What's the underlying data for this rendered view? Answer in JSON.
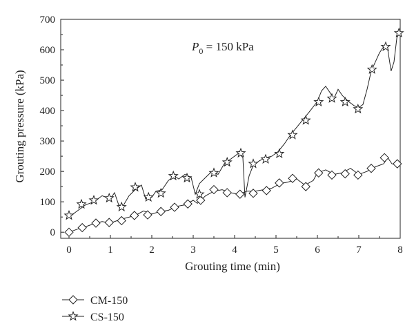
{
  "chart_data": {
    "type": "line",
    "xlabel": "Grouting time (min)",
    "ylabel": "Grouting pressure (kPa)",
    "annotation": {
      "symbol": "P",
      "subscript": "0",
      "text": " = 150 kPa"
    },
    "xlim": [
      -0.2,
      8.0
    ],
    "ylim": [
      -20,
      700
    ],
    "xticks": [
      0,
      1,
      2,
      3,
      4,
      5,
      6,
      7,
      8
    ],
    "yticks": [
      0,
      100,
      200,
      300,
      400,
      500,
      600,
      700
    ],
    "grid": false,
    "legend": "bottom-left",
    "series": [
      {
        "name": "CM-150",
        "marker": "diamond",
        "line": [
          [
            0,
            0
          ],
          [
            0.2,
            10
          ],
          [
            0.4,
            18
          ],
          [
            0.6,
            28
          ],
          [
            0.8,
            35
          ],
          [
            1.0,
            30
          ],
          [
            1.2,
            40
          ],
          [
            1.4,
            48
          ],
          [
            1.6,
            55
          ],
          [
            1.8,
            70
          ],
          [
            2.0,
            60
          ],
          [
            2.2,
            68
          ],
          [
            2.4,
            72
          ],
          [
            2.6,
            85
          ],
          [
            2.8,
            90
          ],
          [
            3.0,
            105
          ],
          [
            3.1,
            95
          ],
          [
            3.3,
            120
          ],
          [
            3.5,
            135
          ],
          [
            3.7,
            140
          ],
          [
            3.9,
            130
          ],
          [
            4.1,
            125
          ],
          [
            4.3,
            135
          ],
          [
            4.5,
            135
          ],
          [
            4.7,
            140
          ],
          [
            4.9,
            145
          ],
          [
            5.1,
            160
          ],
          [
            5.3,
            165
          ],
          [
            5.5,
            175
          ],
          [
            5.7,
            155
          ],
          [
            5.9,
            170
          ],
          [
            6.0,
            195
          ],
          [
            6.2,
            205
          ],
          [
            6.4,
            190
          ],
          [
            6.6,
            195
          ],
          [
            6.8,
            210
          ],
          [
            7.0,
            190
          ],
          [
            7.2,
            200
          ],
          [
            7.4,
            215
          ],
          [
            7.6,
            225
          ],
          [
            7.7,
            245
          ],
          [
            7.8,
            225
          ],
          [
            8.0,
            218
          ]
        ],
        "markers": [
          [
            0.0,
            0
          ],
          [
            0.32,
            15
          ],
          [
            0.65,
            30
          ],
          [
            0.97,
            32
          ],
          [
            1.27,
            38
          ],
          [
            1.58,
            55
          ],
          [
            1.9,
            57
          ],
          [
            2.22,
            68
          ],
          [
            2.55,
            82
          ],
          [
            2.87,
            93
          ],
          [
            3.18,
            105
          ],
          [
            3.5,
            140
          ],
          [
            3.82,
            130
          ],
          [
            4.13,
            125
          ],
          [
            4.45,
            128
          ],
          [
            4.77,
            137
          ],
          [
            5.08,
            162
          ],
          [
            5.4,
            177
          ],
          [
            5.72,
            150
          ],
          [
            6.03,
            195
          ],
          [
            6.35,
            188
          ],
          [
            6.67,
            192
          ],
          [
            6.98,
            188
          ],
          [
            7.3,
            210
          ],
          [
            7.62,
            245
          ],
          [
            7.93,
            225
          ]
        ]
      },
      {
        "name": "CS-150",
        "marker": "star",
        "line": [
          [
            0,
            50
          ],
          [
            0.2,
            70
          ],
          [
            0.4,
            90
          ],
          [
            0.6,
            100
          ],
          [
            0.8,
            120
          ],
          [
            0.9,
            115
          ],
          [
            1.0,
            110
          ],
          [
            1.1,
            130
          ],
          [
            1.2,
            90
          ],
          [
            1.3,
            85
          ],
          [
            1.45,
            120
          ],
          [
            1.6,
            140
          ],
          [
            1.75,
            155
          ],
          [
            1.85,
            110
          ],
          [
            2.0,
            115
          ],
          [
            2.1,
            135
          ],
          [
            2.25,
            140
          ],
          [
            2.4,
            170
          ],
          [
            2.55,
            185
          ],
          [
            2.65,
            175
          ],
          [
            2.8,
            190
          ],
          [
            2.95,
            180
          ],
          [
            3.05,
            125
          ],
          [
            3.15,
            160
          ],
          [
            3.3,
            180
          ],
          [
            3.45,
            200
          ],
          [
            3.6,
            190
          ],
          [
            3.75,
            225
          ],
          [
            3.9,
            240
          ],
          [
            4.1,
            260
          ],
          [
            4.2,
            245
          ],
          [
            4.25,
            115
          ],
          [
            4.35,
            185
          ],
          [
            4.45,
            220
          ],
          [
            4.6,
            235
          ],
          [
            4.75,
            245
          ],
          [
            4.9,
            250
          ],
          [
            5.05,
            265
          ],
          [
            5.2,
            290
          ],
          [
            5.35,
            320
          ],
          [
            5.5,
            345
          ],
          [
            5.65,
            370
          ],
          [
            5.8,
            395
          ],
          [
            6.0,
            430
          ],
          [
            6.1,
            465
          ],
          [
            6.2,
            480
          ],
          [
            6.3,
            460
          ],
          [
            6.4,
            440
          ],
          [
            6.5,
            470
          ],
          [
            6.6,
            450
          ],
          [
            6.75,
            430
          ],
          [
            6.9,
            415
          ],
          [
            7.0,
            410
          ],
          [
            7.1,
            420
          ],
          [
            7.2,
            470
          ],
          [
            7.3,
            530
          ],
          [
            7.4,
            560
          ],
          [
            7.5,
            590
          ],
          [
            7.6,
            610
          ],
          [
            7.7,
            600
          ],
          [
            7.78,
            530
          ],
          [
            7.85,
            560
          ],
          [
            7.92,
            640
          ],
          [
            8.0,
            660
          ]
        ],
        "markers": [
          [
            0.0,
            55
          ],
          [
            0.3,
            92
          ],
          [
            0.6,
            105
          ],
          [
            0.97,
            112
          ],
          [
            1.27,
            83
          ],
          [
            1.6,
            148
          ],
          [
            1.92,
            115
          ],
          [
            2.22,
            128
          ],
          [
            2.52,
            185
          ],
          [
            2.85,
            178
          ],
          [
            3.15,
            125
          ],
          [
            3.5,
            195
          ],
          [
            3.82,
            230
          ],
          [
            4.15,
            260
          ],
          [
            4.45,
            225
          ],
          [
            4.75,
            240
          ],
          [
            5.08,
            258
          ],
          [
            5.4,
            320
          ],
          [
            5.72,
            368
          ],
          [
            6.03,
            428
          ],
          [
            6.35,
            440
          ],
          [
            6.67,
            428
          ],
          [
            6.98,
            405
          ],
          [
            7.32,
            535
          ],
          [
            7.65,
            610
          ],
          [
            7.97,
            655
          ]
        ]
      }
    ]
  }
}
